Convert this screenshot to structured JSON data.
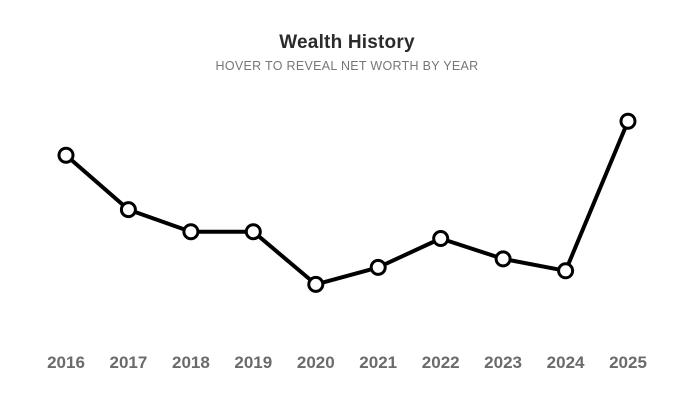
{
  "chart_data": {
    "type": "line",
    "title": "Wealth History",
    "subtitle": "HOVER TO REVEAL NET WORTH BY YEAR",
    "categories": [
      "2016",
      "2017",
      "2018",
      "2019",
      "2020",
      "2021",
      "2022",
      "2023",
      "2024",
      "2025"
    ],
    "series": [
      {
        "values": [
          72,
          56,
          49.5,
          49.5,
          34,
          39,
          47.5,
          41.5,
          38,
          82
        ]
      }
    ],
    "ylim": [
      0,
      100
    ],
    "grid": false,
    "legend": "none",
    "colors": {
      "line": "#000000",
      "marker_fill": "#ffffff",
      "tick_label": "#6b6b6b",
      "title": "#2b2b2b",
      "subtitle": "#777777"
    }
  }
}
